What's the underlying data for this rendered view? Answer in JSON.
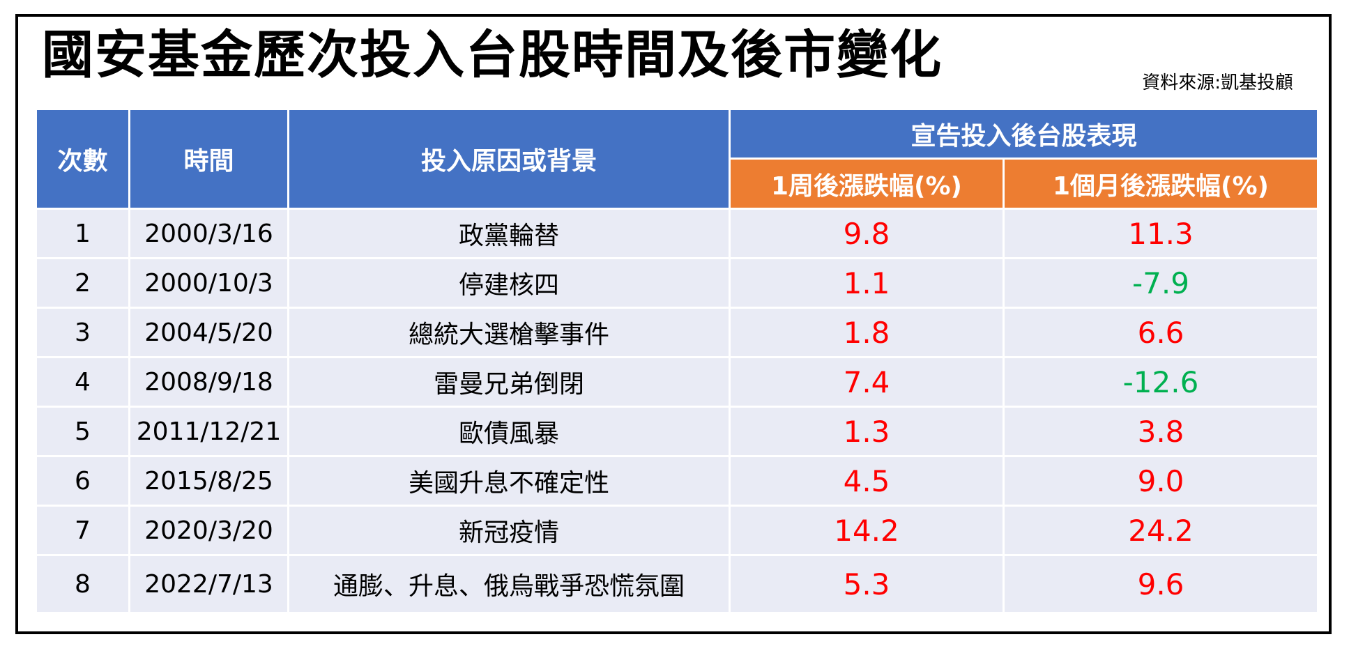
{
  "title": "國安基金歷次投入台股時間及後市變化",
  "source": "資料來源:凱基投顧",
  "colors": {
    "header_blue": "#4472c4",
    "header_orange": "#ed7d31",
    "row_bg": "#e9ebf5",
    "positive": "#ff0000",
    "negative": "#00b050"
  },
  "headers": {
    "count": "次數",
    "date": "時間",
    "reason": "投入原因或背景",
    "performance": "宣告投入後台股表現",
    "week": "1周後漲跌幅(%)",
    "month": "1個月後漲跌幅(%)"
  },
  "rows": [
    {
      "n": "1",
      "date": "2000/3/16",
      "reason": "政黨輪替",
      "week": "9.8",
      "month": "11.3"
    },
    {
      "n": "2",
      "date": "2000/10/3",
      "reason": "停建核四",
      "week": "1.1",
      "month": "-7.9"
    },
    {
      "n": "3",
      "date": "2004/5/20",
      "reason": "總統大選槍擊事件",
      "week": "1.8",
      "month": "6.6"
    },
    {
      "n": "4",
      "date": "2008/9/18",
      "reason": "雷曼兄弟倒閉",
      "week": "7.4",
      "month": "-12.6"
    },
    {
      "n": "5",
      "date": "2011/12/21",
      "reason": "歐債風暴",
      "week": "1.3",
      "month": "3.8"
    },
    {
      "n": "6",
      "date": "2015/8/25",
      "reason": "美國升息不確定性",
      "week": "4.5",
      "month": "9.0"
    },
    {
      "n": "7",
      "date": "2020/3/20",
      "reason": "新冠疫情",
      "week": "14.2",
      "month": "24.2"
    },
    {
      "n": "8",
      "date": "2022/7/13",
      "reason": "通膨、升息、俄烏戰爭恐慌氛圍",
      "week": "5.3",
      "month": "9.6"
    }
  ]
}
